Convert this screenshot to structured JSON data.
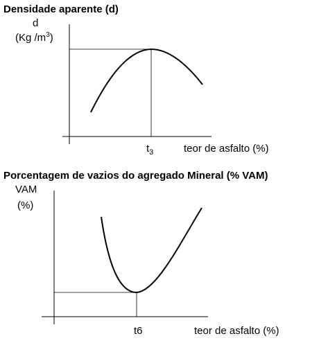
{
  "panels": [
    {
      "title": "Densidade aparente (d)",
      "y_label": {
        "line1": "d",
        "line2": {
          "text": "(Kg /m",
          "sup": "3",
          "end": ")"
        }
      },
      "x_marker": {
        "text": "t",
        "sub": "3"
      },
      "x_label": "teor de asfalto (%)"
    },
    {
      "title": "Porcentagem de vazios do agregado Mineral (% VAM)",
      "y_label": {
        "line1": "VAM",
        "line2": "(%)"
      },
      "x_marker": "t6",
      "x_label": "teor de asfalto (%)"
    }
  ]
}
